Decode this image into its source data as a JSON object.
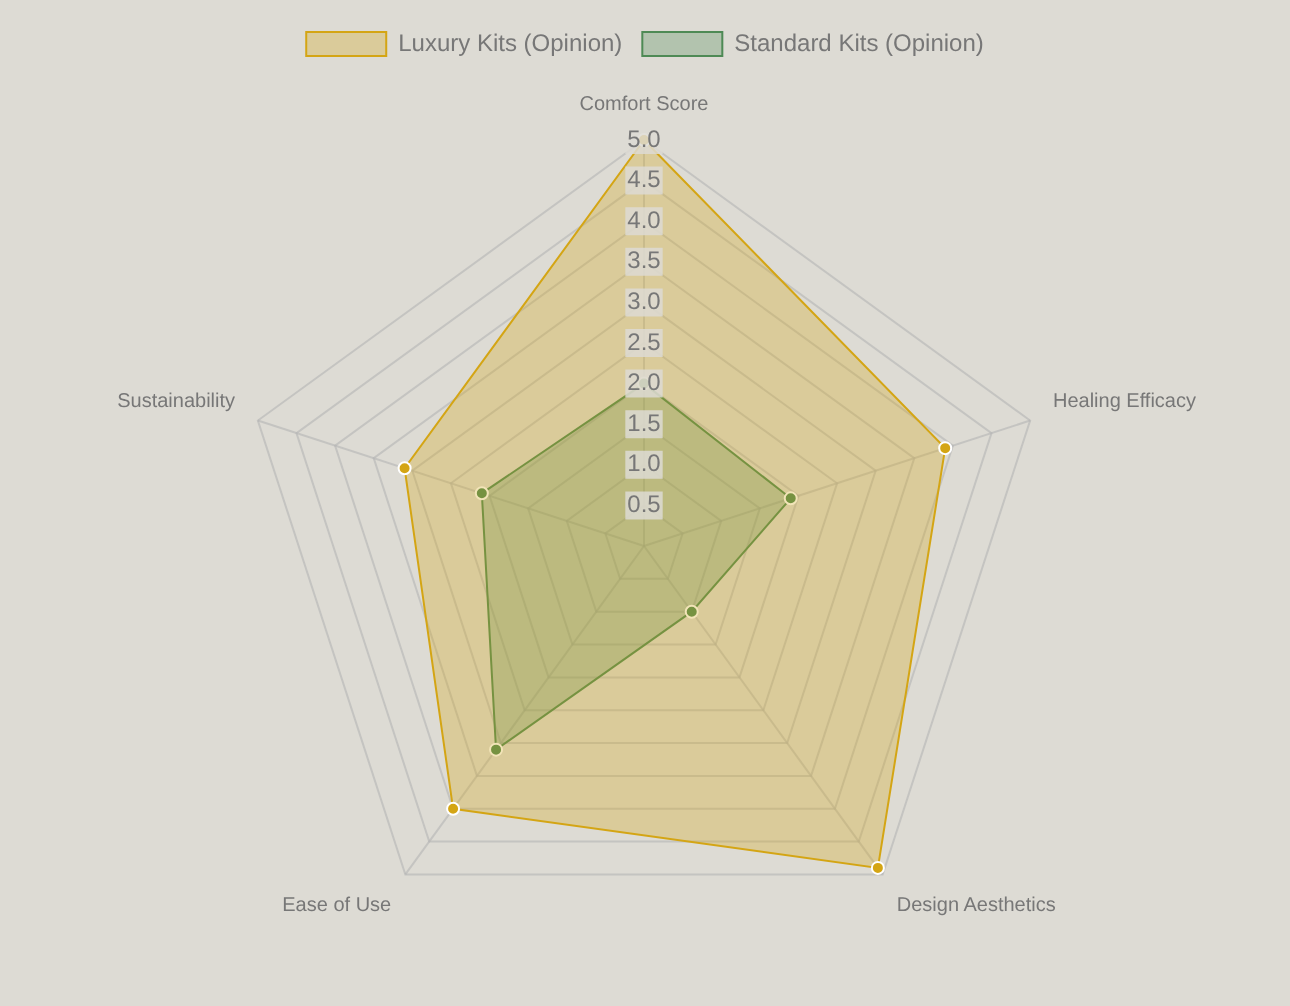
{
  "chart_data": {
    "type": "radar",
    "categories": [
      "Comfort Score",
      "Healing Efficacy",
      "Design Aesthetics",
      "Ease of Use",
      "Sustainability"
    ],
    "series": [
      {
        "name": "Luxury Kits (Opinion)",
        "color": "#d4a514",
        "values": [
          5.0,
          3.9,
          4.9,
          4.0,
          3.1
        ]
      },
      {
        "name": "Standard Kits (Opinion)",
        "color": "#4e8a55",
        "values": [
          2.0,
          1.9,
          1.0,
          3.1,
          2.1
        ]
      }
    ],
    "ylim": [
      0,
      5
    ],
    "yticks": [
      0.5,
      {
        "value": 1,
        "label": "1.0"
      },
      1.5,
      {
        "value": 2,
        "label": "2.0"
      },
      2.5,
      {
        "value": 3,
        "label": "3.0"
      },
      3.5,
      {
        "value": 4,
        "label": "4.0"
      },
      4.5,
      {
        "value": 5,
        "label": "5.0"
      }
    ],
    "legend": "top",
    "grid": true,
    "marker": "circle"
  }
}
